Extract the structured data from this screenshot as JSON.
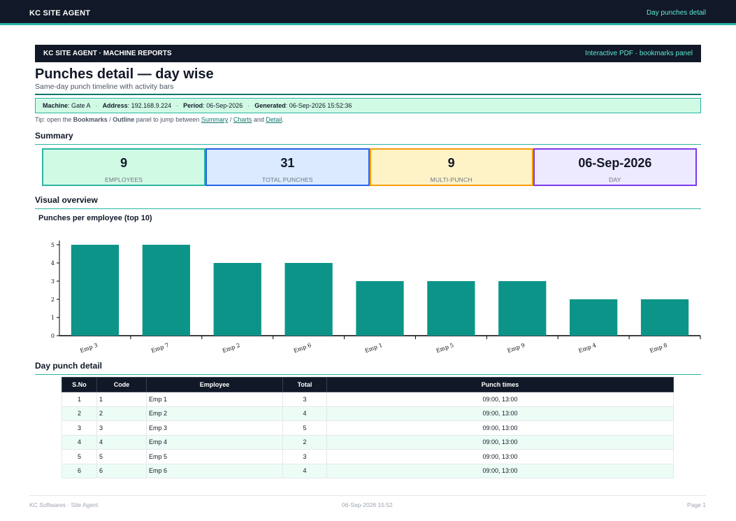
{
  "topbar": {
    "brand": "KC SITE AGENT",
    "right": "Day punches detail"
  },
  "band": {
    "left": "KC SITE AGENT · MACHINE REPORTS",
    "right": "Interactive PDF · bookmarks panel"
  },
  "title": "Punches detail — day wise",
  "subtitle": "Same-day punch timeline with activity bars",
  "meta": {
    "machine_label": "Machine",
    "machine": "Gate A",
    "address_label": "Address",
    "address": "192.168.9.224",
    "period_label": "Period",
    "period": "06-Sep-2026",
    "generated_label": "Generated",
    "generated": "06-Sep-2026 15:52:36"
  },
  "tip": {
    "prefix": "Tip: open the ",
    "bookmarks": "Bookmarks",
    "slash": " / ",
    "outline": "Outline",
    "middle": " panel to jump between ",
    "summary": "Summary",
    "sep1": " / ",
    "charts": "Charts",
    "and": " and ",
    "detail": "Detail",
    "end": "."
  },
  "sections": {
    "summary": "Summary",
    "visual": "Visual overview",
    "detail": "Day punch detail"
  },
  "summary_cards": [
    {
      "value": "9",
      "label": "EMPLOYEES",
      "border": "#2bb5a3",
      "bg": "#d1fae5"
    },
    {
      "value": "31",
      "label": "TOTAL PUNCHES",
      "border": "#2563eb",
      "bg": "#dbeafe"
    },
    {
      "value": "9",
      "label": "MULTI-PUNCH",
      "border": "#f59e0b",
      "bg": "#fef3c7"
    },
    {
      "value": "06-Sep-2026",
      "label": "DAY",
      "border": "#7c3aed",
      "bg": "#ede9fe"
    }
  ],
  "chart_title": "Punches per employee (top 10)",
  "chart_data": {
    "type": "bar",
    "title": "Punches per employee (top 10)",
    "categories": [
      "Emp 3",
      "Emp 7",
      "Emp 2",
      "Emp 6",
      "Emp 1",
      "Emp 5",
      "Emp 9",
      "Emp 4",
      "Emp 8"
    ],
    "values": [
      5,
      5,
      4,
      4,
      3,
      3,
      3,
      2,
      2
    ],
    "ylim": [
      0,
      5
    ],
    "yticks": [
      0,
      1,
      2,
      3,
      4,
      5
    ],
    "xlabel": "",
    "ylabel": "",
    "grid": false,
    "color": "#0d9488"
  },
  "table": {
    "headers": [
      "S.No",
      "Code",
      "Employee",
      "Total",
      "Punch times"
    ],
    "rows": [
      [
        "1",
        "1",
        "Emp 1",
        "3",
        "09:00, 13:00"
      ],
      [
        "2",
        "2",
        "Emp 2",
        "4",
        "09:00, 13:00"
      ],
      [
        "3",
        "3",
        "Emp 3",
        "5",
        "09:00, 13:00"
      ],
      [
        "4",
        "4",
        "Emp 4",
        "2",
        "09:00, 13:00"
      ],
      [
        "5",
        "5",
        "Emp 5",
        "3",
        "09:00, 13:00"
      ],
      [
        "6",
        "6",
        "Emp 6",
        "4",
        "09:00, 13:00"
      ]
    ]
  },
  "footer": {
    "left": "KC Softwares · Site Agent",
    "center": "06-Sep-2026 15:52",
    "right": "Page 1"
  }
}
